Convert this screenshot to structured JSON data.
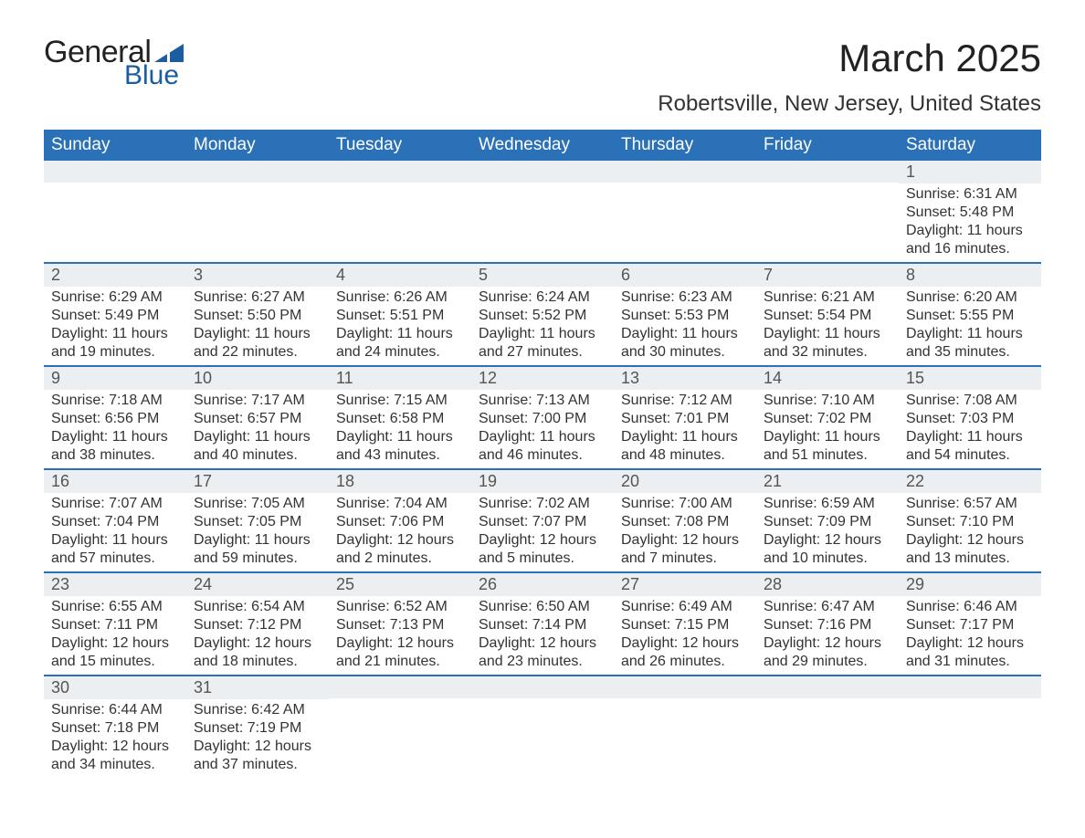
{
  "brand": {
    "line1": "General",
    "line2": "Blue",
    "accent_color": "#1b5da0"
  },
  "title": "March 2025",
  "location": "Robertsville, New Jersey, United States",
  "header_bg": "#2a71b8",
  "header_fg": "#ffffff",
  "daynum_bg": "#eceff1",
  "row_divider_color": "#2a71b8",
  "day_headers": [
    "Sunday",
    "Monday",
    "Tuesday",
    "Wednesday",
    "Thursday",
    "Friday",
    "Saturday"
  ],
  "weeks": [
    [
      null,
      null,
      null,
      null,
      null,
      null,
      {
        "n": "1",
        "sunrise": "6:31 AM",
        "sunset": "5:48 PM",
        "daylight": "11 hours and 16 minutes."
      }
    ],
    [
      {
        "n": "2",
        "sunrise": "6:29 AM",
        "sunset": "5:49 PM",
        "daylight": "11 hours and 19 minutes."
      },
      {
        "n": "3",
        "sunrise": "6:27 AM",
        "sunset": "5:50 PM",
        "daylight": "11 hours and 22 minutes."
      },
      {
        "n": "4",
        "sunrise": "6:26 AM",
        "sunset": "5:51 PM",
        "daylight": "11 hours and 24 minutes."
      },
      {
        "n": "5",
        "sunrise": "6:24 AM",
        "sunset": "5:52 PM",
        "daylight": "11 hours and 27 minutes."
      },
      {
        "n": "6",
        "sunrise": "6:23 AM",
        "sunset": "5:53 PM",
        "daylight": "11 hours and 30 minutes."
      },
      {
        "n": "7",
        "sunrise": "6:21 AM",
        "sunset": "5:54 PM",
        "daylight": "11 hours and 32 minutes."
      },
      {
        "n": "8",
        "sunrise": "6:20 AM",
        "sunset": "5:55 PM",
        "daylight": "11 hours and 35 minutes."
      }
    ],
    [
      {
        "n": "9",
        "sunrise": "7:18 AM",
        "sunset": "6:56 PM",
        "daylight": "11 hours and 38 minutes."
      },
      {
        "n": "10",
        "sunrise": "7:17 AM",
        "sunset": "6:57 PM",
        "daylight": "11 hours and 40 minutes."
      },
      {
        "n": "11",
        "sunrise": "7:15 AM",
        "sunset": "6:58 PM",
        "daylight": "11 hours and 43 minutes."
      },
      {
        "n": "12",
        "sunrise": "7:13 AM",
        "sunset": "7:00 PM",
        "daylight": "11 hours and 46 minutes."
      },
      {
        "n": "13",
        "sunrise": "7:12 AM",
        "sunset": "7:01 PM",
        "daylight": "11 hours and 48 minutes."
      },
      {
        "n": "14",
        "sunrise": "7:10 AM",
        "sunset": "7:02 PM",
        "daylight": "11 hours and 51 minutes."
      },
      {
        "n": "15",
        "sunrise": "7:08 AM",
        "sunset": "7:03 PM",
        "daylight": "11 hours and 54 minutes."
      }
    ],
    [
      {
        "n": "16",
        "sunrise": "7:07 AM",
        "sunset": "7:04 PM",
        "daylight": "11 hours and 57 minutes."
      },
      {
        "n": "17",
        "sunrise": "7:05 AM",
        "sunset": "7:05 PM",
        "daylight": "11 hours and 59 minutes."
      },
      {
        "n": "18",
        "sunrise": "7:04 AM",
        "sunset": "7:06 PM",
        "daylight": "12 hours and 2 minutes."
      },
      {
        "n": "19",
        "sunrise": "7:02 AM",
        "sunset": "7:07 PM",
        "daylight": "12 hours and 5 minutes."
      },
      {
        "n": "20",
        "sunrise": "7:00 AM",
        "sunset": "7:08 PM",
        "daylight": "12 hours and 7 minutes."
      },
      {
        "n": "21",
        "sunrise": "6:59 AM",
        "sunset": "7:09 PM",
        "daylight": "12 hours and 10 minutes."
      },
      {
        "n": "22",
        "sunrise": "6:57 AM",
        "sunset": "7:10 PM",
        "daylight": "12 hours and 13 minutes."
      }
    ],
    [
      {
        "n": "23",
        "sunrise": "6:55 AM",
        "sunset": "7:11 PM",
        "daylight": "12 hours and 15 minutes."
      },
      {
        "n": "24",
        "sunrise": "6:54 AM",
        "sunset": "7:12 PM",
        "daylight": "12 hours and 18 minutes."
      },
      {
        "n": "25",
        "sunrise": "6:52 AM",
        "sunset": "7:13 PM",
        "daylight": "12 hours and 21 minutes."
      },
      {
        "n": "26",
        "sunrise": "6:50 AM",
        "sunset": "7:14 PM",
        "daylight": "12 hours and 23 minutes."
      },
      {
        "n": "27",
        "sunrise": "6:49 AM",
        "sunset": "7:15 PM",
        "daylight": "12 hours and 26 minutes."
      },
      {
        "n": "28",
        "sunrise": "6:47 AM",
        "sunset": "7:16 PM",
        "daylight": "12 hours and 29 minutes."
      },
      {
        "n": "29",
        "sunrise": "6:46 AM",
        "sunset": "7:17 PM",
        "daylight": "12 hours and 31 minutes."
      }
    ],
    [
      {
        "n": "30",
        "sunrise": "6:44 AM",
        "sunset": "7:18 PM",
        "daylight": "12 hours and 34 minutes."
      },
      {
        "n": "31",
        "sunrise": "6:42 AM",
        "sunset": "7:19 PM",
        "daylight": "12 hours and 37 minutes."
      },
      null,
      null,
      null,
      null,
      null
    ]
  ],
  "labels": {
    "sunrise": "Sunrise: ",
    "sunset": "Sunset: ",
    "daylight": "Daylight: "
  }
}
